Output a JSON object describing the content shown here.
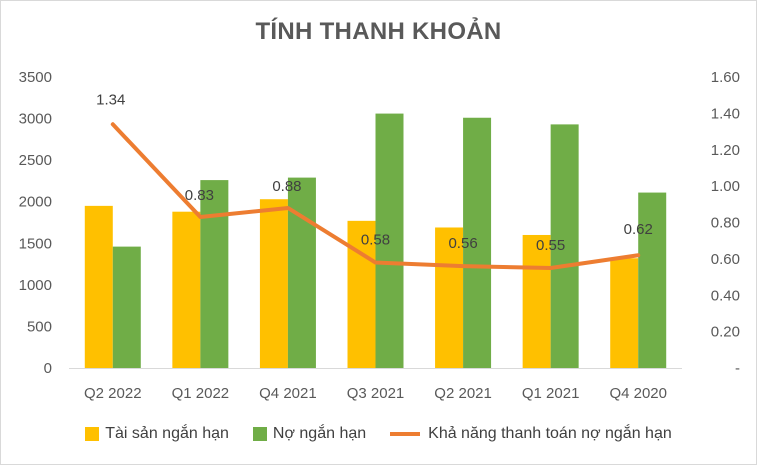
{
  "chart_data": {
    "type": "bar",
    "title": "TÍNH THANH KHOẢN",
    "categories": [
      "Q2 2022",
      "Q1 2022",
      "Q4 2021",
      "Q3 2021",
      "Q2 2021",
      "Q1 2021",
      "Q4 2020"
    ],
    "series": [
      {
        "name": "Tài sản ngắn hạn",
        "type": "bar",
        "axis": "left",
        "color": "#FFC000",
        "values": [
          1950,
          1880,
          2030,
          1770,
          1690,
          1600,
          1320
        ]
      },
      {
        "name": "Nợ ngắn hạn",
        "type": "bar",
        "axis": "left",
        "color": "#70AD47",
        "values": [
          1460,
          2260,
          2290,
          3060,
          3010,
          2930,
          2110
        ]
      },
      {
        "name": "Khả năng thanh toán nợ ngắn hạn",
        "type": "line",
        "axis": "right",
        "color": "#ED7D31",
        "values": [
          1.34,
          0.83,
          0.88,
          0.58,
          0.56,
          0.55,
          0.62
        ],
        "labels": [
          "1.34",
          "0.83",
          "0.88",
          "0.58",
          "0.56",
          "0.55",
          "0.62"
        ]
      }
    ],
    "y_left": {
      "ylim": [
        0,
        3500
      ],
      "ticks": [
        "0",
        "500",
        "1000",
        "1500",
        "2000",
        "2500",
        "3000",
        "3500"
      ]
    },
    "y_right": {
      "ylim": [
        0,
        1.6
      ],
      "ticks": [
        "-",
        "0.20",
        "0.40",
        "0.60",
        "0.80",
        "1.00",
        "1.20",
        "1.40",
        "1.60"
      ]
    },
    "grid": false,
    "legend_position": "bottom"
  }
}
